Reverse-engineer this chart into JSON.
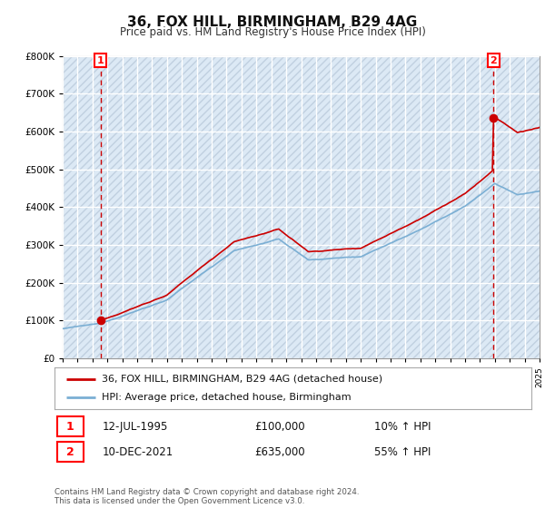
{
  "title": "36, FOX HILL, BIRMINGHAM, B29 4AG",
  "subtitle": "Price paid vs. HM Land Registry's House Price Index (HPI)",
  "sale1_date": "12-JUL-1995",
  "sale1_price": 100000,
  "sale1_year": 1995.54,
  "sale2_date": "10-DEC-2021",
  "sale2_price": 635000,
  "sale2_year": 2021.92,
  "sale1_hpi": "10% ↑ HPI",
  "sale2_hpi": "55% ↑ HPI",
  "legend_property": "36, FOX HILL, BIRMINGHAM, B29 4AG (detached house)",
  "legend_hpi": "HPI: Average price, detached house, Birmingham",
  "footer": "Contains HM Land Registry data © Crown copyright and database right 2024.\nThis data is licensed under the Open Government Licence v3.0.",
  "property_color": "#cc0000",
  "hpi_color": "#7bafd4",
  "vline_color": "#cc0000",
  "ylim_min": 0,
  "ylim_max": 800000,
  "xlim_min": 1993,
  "xlim_max": 2025,
  "background_color": "#ffffff",
  "chart_bg_color": "#dce9f5",
  "hatch_color": "#c0d0e0",
  "grid_color": "#ffffff"
}
